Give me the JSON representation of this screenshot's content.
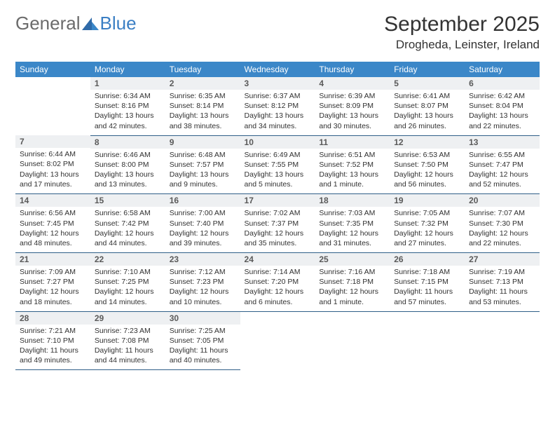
{
  "logo": {
    "part1": "General",
    "part2": "Blue"
  },
  "title": "September 2025",
  "location": "Drogheda, Leinster, Ireland",
  "colors": {
    "header_bg": "#3b87c8",
    "header_text": "#ffffff",
    "daynum_bg": "#eef0f2",
    "row_divider": "#2f5f88",
    "logo_gray": "#6b6b6b",
    "logo_blue": "#3b7fc4"
  },
  "weekdays": [
    "Sunday",
    "Monday",
    "Tuesday",
    "Wednesday",
    "Thursday",
    "Friday",
    "Saturday"
  ],
  "weeks": [
    [
      {
        "day": "",
        "lines": [
          "",
          "",
          "",
          ""
        ]
      },
      {
        "day": "1",
        "lines": [
          "Sunrise: 6:34 AM",
          "Sunset: 8:16 PM",
          "Daylight: 13 hours",
          "and 42 minutes."
        ]
      },
      {
        "day": "2",
        "lines": [
          "Sunrise: 6:35 AM",
          "Sunset: 8:14 PM",
          "Daylight: 13 hours",
          "and 38 minutes."
        ]
      },
      {
        "day": "3",
        "lines": [
          "Sunrise: 6:37 AM",
          "Sunset: 8:12 PM",
          "Daylight: 13 hours",
          "and 34 minutes."
        ]
      },
      {
        "day": "4",
        "lines": [
          "Sunrise: 6:39 AM",
          "Sunset: 8:09 PM",
          "Daylight: 13 hours",
          "and 30 minutes."
        ]
      },
      {
        "day": "5",
        "lines": [
          "Sunrise: 6:41 AM",
          "Sunset: 8:07 PM",
          "Daylight: 13 hours",
          "and 26 minutes."
        ]
      },
      {
        "day": "6",
        "lines": [
          "Sunrise: 6:42 AM",
          "Sunset: 8:04 PM",
          "Daylight: 13 hours",
          "and 22 minutes."
        ]
      }
    ],
    [
      {
        "day": "7",
        "lines": [
          "Sunrise: 6:44 AM",
          "Sunset: 8:02 PM",
          "Daylight: 13 hours",
          "and 17 minutes."
        ]
      },
      {
        "day": "8",
        "lines": [
          "Sunrise: 6:46 AM",
          "Sunset: 8:00 PM",
          "Daylight: 13 hours",
          "and 13 minutes."
        ]
      },
      {
        "day": "9",
        "lines": [
          "Sunrise: 6:48 AM",
          "Sunset: 7:57 PM",
          "Daylight: 13 hours",
          "and 9 minutes."
        ]
      },
      {
        "day": "10",
        "lines": [
          "Sunrise: 6:49 AM",
          "Sunset: 7:55 PM",
          "Daylight: 13 hours",
          "and 5 minutes."
        ]
      },
      {
        "day": "11",
        "lines": [
          "Sunrise: 6:51 AM",
          "Sunset: 7:52 PM",
          "Daylight: 13 hours",
          "and 1 minute."
        ]
      },
      {
        "day": "12",
        "lines": [
          "Sunrise: 6:53 AM",
          "Sunset: 7:50 PM",
          "Daylight: 12 hours",
          "and 56 minutes."
        ]
      },
      {
        "day": "13",
        "lines": [
          "Sunrise: 6:55 AM",
          "Sunset: 7:47 PM",
          "Daylight: 12 hours",
          "and 52 minutes."
        ]
      }
    ],
    [
      {
        "day": "14",
        "lines": [
          "Sunrise: 6:56 AM",
          "Sunset: 7:45 PM",
          "Daylight: 12 hours",
          "and 48 minutes."
        ]
      },
      {
        "day": "15",
        "lines": [
          "Sunrise: 6:58 AM",
          "Sunset: 7:42 PM",
          "Daylight: 12 hours",
          "and 44 minutes."
        ]
      },
      {
        "day": "16",
        "lines": [
          "Sunrise: 7:00 AM",
          "Sunset: 7:40 PM",
          "Daylight: 12 hours",
          "and 39 minutes."
        ]
      },
      {
        "day": "17",
        "lines": [
          "Sunrise: 7:02 AM",
          "Sunset: 7:37 PM",
          "Daylight: 12 hours",
          "and 35 minutes."
        ]
      },
      {
        "day": "18",
        "lines": [
          "Sunrise: 7:03 AM",
          "Sunset: 7:35 PM",
          "Daylight: 12 hours",
          "and 31 minutes."
        ]
      },
      {
        "day": "19",
        "lines": [
          "Sunrise: 7:05 AM",
          "Sunset: 7:32 PM",
          "Daylight: 12 hours",
          "and 27 minutes."
        ]
      },
      {
        "day": "20",
        "lines": [
          "Sunrise: 7:07 AM",
          "Sunset: 7:30 PM",
          "Daylight: 12 hours",
          "and 22 minutes."
        ]
      }
    ],
    [
      {
        "day": "21",
        "lines": [
          "Sunrise: 7:09 AM",
          "Sunset: 7:27 PM",
          "Daylight: 12 hours",
          "and 18 minutes."
        ]
      },
      {
        "day": "22",
        "lines": [
          "Sunrise: 7:10 AM",
          "Sunset: 7:25 PM",
          "Daylight: 12 hours",
          "and 14 minutes."
        ]
      },
      {
        "day": "23",
        "lines": [
          "Sunrise: 7:12 AM",
          "Sunset: 7:23 PM",
          "Daylight: 12 hours",
          "and 10 minutes."
        ]
      },
      {
        "day": "24",
        "lines": [
          "Sunrise: 7:14 AM",
          "Sunset: 7:20 PM",
          "Daylight: 12 hours",
          "and 6 minutes."
        ]
      },
      {
        "day": "25",
        "lines": [
          "Sunrise: 7:16 AM",
          "Sunset: 7:18 PM",
          "Daylight: 12 hours",
          "and 1 minute."
        ]
      },
      {
        "day": "26",
        "lines": [
          "Sunrise: 7:18 AM",
          "Sunset: 7:15 PM",
          "Daylight: 11 hours",
          "and 57 minutes."
        ]
      },
      {
        "day": "27",
        "lines": [
          "Sunrise: 7:19 AM",
          "Sunset: 7:13 PM",
          "Daylight: 11 hours",
          "and 53 minutes."
        ]
      }
    ],
    [
      {
        "day": "28",
        "lines": [
          "Sunrise: 7:21 AM",
          "Sunset: 7:10 PM",
          "Daylight: 11 hours",
          "and 49 minutes."
        ]
      },
      {
        "day": "29",
        "lines": [
          "Sunrise: 7:23 AM",
          "Sunset: 7:08 PM",
          "Daylight: 11 hours",
          "and 44 minutes."
        ]
      },
      {
        "day": "30",
        "lines": [
          "Sunrise: 7:25 AM",
          "Sunset: 7:05 PM",
          "Daylight: 11 hours",
          "and 40 minutes."
        ]
      },
      {
        "day": "",
        "lines": [
          "",
          "",
          "",
          ""
        ]
      },
      {
        "day": "",
        "lines": [
          "",
          "",
          "",
          ""
        ]
      },
      {
        "day": "",
        "lines": [
          "",
          "",
          "",
          ""
        ]
      },
      {
        "day": "",
        "lines": [
          "",
          "",
          "",
          ""
        ]
      }
    ]
  ]
}
